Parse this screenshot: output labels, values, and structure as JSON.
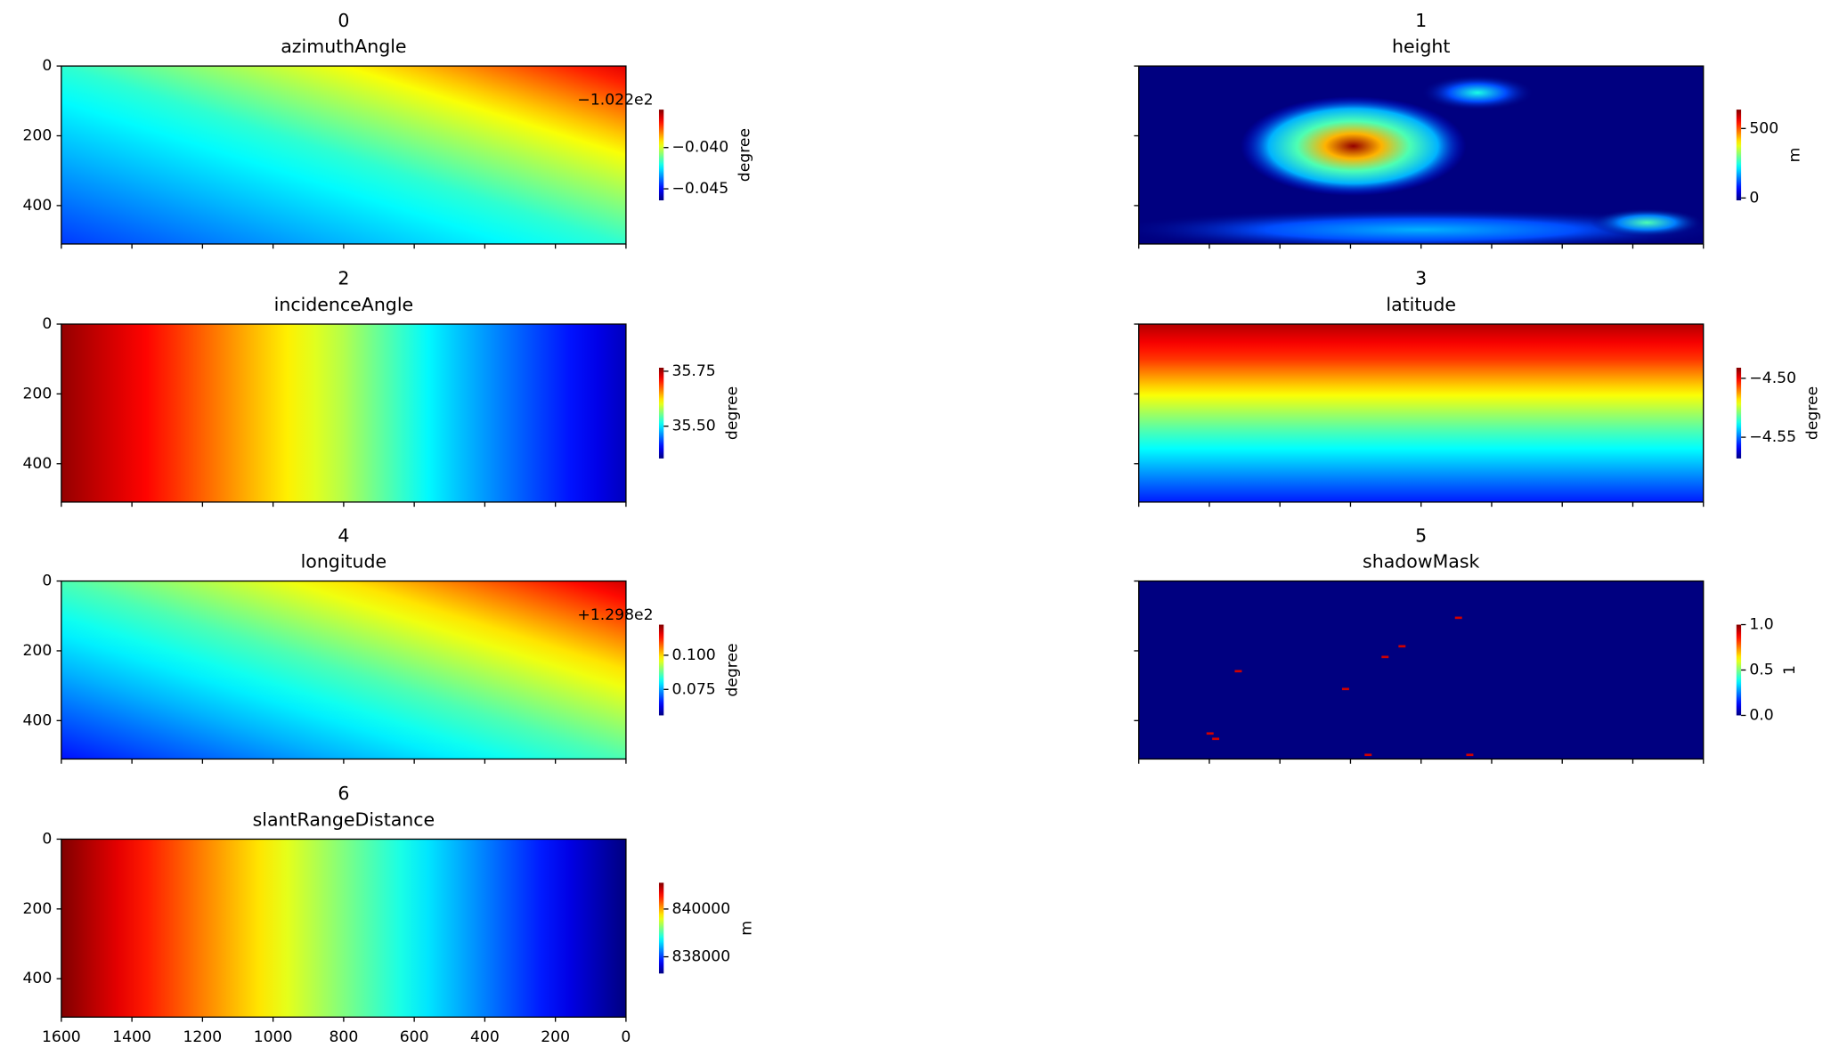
{
  "chart_data": [
    {
      "type": "heatmap",
      "title": "0",
      "subtitle": "azimuthAngle",
      "colormap": "jet",
      "xlim": [
        1600,
        0
      ],
      "ylim": [
        0,
        510
      ],
      "xticks": [
        1600,
        1400,
        1200,
        1000,
        800,
        600,
        400,
        200,
        0
      ],
      "yticks": [
        0,
        200,
        400
      ],
      "show_xticklabels": false,
      "show_yticklabels": true,
      "colorbar": {
        "label": "degree",
        "lim": [
          -0.0464,
          -0.0354
        ],
        "offset": "−1.022e2",
        "ticks": [
          {
            "value": -0.045,
            "label": "−0.045"
          },
          {
            "value": -0.04,
            "label": "−0.040"
          }
        ]
      }
    },
    {
      "type": "heatmap",
      "title": "1",
      "subtitle": "height",
      "colormap": "jet",
      "xlim": [
        1600,
        0
      ],
      "ylim": [
        0,
        510
      ],
      "xticks": [
        1600,
        1400,
        1200,
        1000,
        800,
        600,
        400,
        200,
        0
      ],
      "yticks": [
        0,
        200,
        400
      ],
      "show_xticklabels": false,
      "show_yticklabels": false,
      "colorbar": {
        "label": "m",
        "lim": [
          -17,
          636
        ],
        "ticks": [
          0,
          500
        ]
      }
    },
    {
      "type": "heatmap",
      "title": "2",
      "subtitle": "incidenceAngle",
      "colormap": "jet",
      "xlim": [
        1600,
        0
      ],
      "ylim": [
        0,
        510
      ],
      "xticks": [
        1600,
        1400,
        1200,
        1000,
        800,
        600,
        400,
        200,
        0
      ],
      "yticks": [
        0,
        200,
        400
      ],
      "show_xticklabels": false,
      "show_yticklabels": true,
      "colorbar": {
        "label": "degree",
        "lim": [
          35.353,
          35.766
        ],
        "ticks": [
          {
            "value": 35.5,
            "label": "35.50"
          },
          35.75
        ]
      }
    },
    {
      "type": "heatmap",
      "title": "3",
      "subtitle": "latitude",
      "colormap": "jet",
      "xlim": [
        1600,
        0
      ],
      "ylim": [
        0,
        510
      ],
      "xticks": [
        1600,
        1400,
        1200,
        1000,
        800,
        600,
        400,
        200,
        0
      ],
      "yticks": [
        0,
        200,
        400
      ],
      "show_xticklabels": false,
      "show_yticklabels": false,
      "colorbar": {
        "label": "degree",
        "lim": [
          -4.568,
          -4.491
        ],
        "ticks": [
          {
            "value": -4.55,
            "label": "−4.55"
          },
          {
            "value": -4.5,
            "label": "−4.50"
          }
        ]
      }
    },
    {
      "type": "heatmap",
      "title": "4",
      "subtitle": "longitude",
      "colormap": "jet",
      "xlim": [
        1600,
        0
      ],
      "ylim": [
        0,
        510
      ],
      "xticks": [
        1600,
        1400,
        1200,
        1000,
        800,
        600,
        400,
        200,
        0
      ],
      "yticks": [
        0,
        200,
        400
      ],
      "show_xticklabels": false,
      "show_yticklabels": true,
      "colorbar": {
        "label": "degree",
        "lim": [
          0.056,
          0.1224
        ],
        "offset": "+1.298e2",
        "ticks": [
          0.075,
          {
            "value": 0.1,
            "label": "0.100"
          }
        ]
      }
    },
    {
      "type": "heatmap",
      "title": "5",
      "subtitle": "shadowMask",
      "colormap": "jet",
      "xlim": [
        1600,
        0
      ],
      "ylim": [
        0,
        510
      ],
      "xticks": [
        1600,
        1400,
        1200,
        1000,
        800,
        600,
        400,
        200,
        0
      ],
      "yticks": [
        0,
        200,
        400
      ],
      "show_xticklabels": false,
      "show_yticklabels": false,
      "colorbar": {
        "label": "1",
        "lim": [
          0,
          1
        ],
        "ticks": [
          {
            "value": 0,
            "label": "0.0"
          },
          0.5,
          {
            "value": 1,
            "label": "1.0"
          }
        ]
      }
    },
    {
      "type": "heatmap",
      "title": "6",
      "subtitle": "slantRangeDistance",
      "colormap": "jet",
      "xlim": [
        1600,
        0
      ],
      "ylim": [
        0,
        510
      ],
      "xticks": [
        1600,
        1400,
        1200,
        1000,
        800,
        600,
        400,
        200,
        0
      ],
      "yticks": [
        0,
        200,
        400
      ],
      "show_xticklabels": true,
      "show_yticklabels": true,
      "colorbar": {
        "label": "m",
        "lim": [
          837300,
          841100
        ],
        "ticks": [
          838000,
          840000
        ]
      }
    }
  ]
}
